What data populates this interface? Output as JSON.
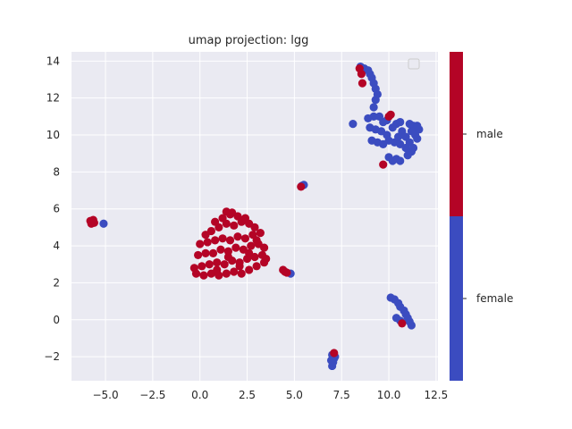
{
  "chart_data": {
    "type": "scatter",
    "title": "umap projection: lgg",
    "xlabel": "",
    "ylabel": "",
    "xlim": [
      -6.8,
      12.6
    ],
    "ylim": [
      -3.3,
      14.5
    ],
    "x_ticks": [
      "−5.0",
      "−2.5",
      "0.0",
      "2.5",
      "5.0",
      "7.5",
      "10.0",
      "12.5"
    ],
    "x_tick_values": [
      -5,
      -2.5,
      0,
      2.5,
      5,
      7.5,
      10,
      12.5
    ],
    "y_ticks": [
      "−2",
      "0",
      "2",
      "4",
      "6",
      "8",
      "10",
      "12",
      "14"
    ],
    "y_tick_values": [
      -2,
      0,
      2,
      4,
      6,
      8,
      10,
      12,
      14
    ],
    "grid": true,
    "background": "#eaeaf2",
    "legend": "top-right (empty)",
    "colorbar": {
      "categories": [
        "female",
        "male"
      ],
      "colors": [
        "#3b4cc0",
        "#b40426"
      ]
    },
    "series": [
      {
        "name": "female",
        "color": "#3b4cc0",
        "points": [
          [
            -5.1,
            5.2
          ],
          [
            4.8,
            2.5
          ],
          [
            5.5,
            7.3
          ],
          [
            5.4,
            7.25
          ],
          [
            7.0,
            -2.5
          ],
          [
            7.05,
            -2.3
          ],
          [
            7.1,
            -2.1
          ],
          [
            7.0,
            -1.9
          ],
          [
            7.15,
            -2.0
          ],
          [
            6.95,
            -2.2
          ],
          [
            8.5,
            13.7
          ],
          [
            8.7,
            13.6
          ],
          [
            8.9,
            13.5
          ],
          [
            9.0,
            13.3
          ],
          [
            9.1,
            13.1
          ],
          [
            9.2,
            12.8
          ],
          [
            9.3,
            12.5
          ],
          [
            9.4,
            12.2
          ],
          [
            9.3,
            11.9
          ],
          [
            9.2,
            11.5
          ],
          [
            8.1,
            10.6
          ],
          [
            8.9,
            10.9
          ],
          [
            9.2,
            11.0
          ],
          [
            9.5,
            11.0
          ],
          [
            9.7,
            10.7
          ],
          [
            9.9,
            10.8
          ],
          [
            9.0,
            10.4
          ],
          [
            9.3,
            10.3
          ],
          [
            9.6,
            10.2
          ],
          [
            9.9,
            10.0
          ],
          [
            9.1,
            9.7
          ],
          [
            9.4,
            9.6
          ],
          [
            9.7,
            9.5
          ],
          [
            10.0,
            9.7
          ],
          [
            10.3,
            9.6
          ],
          [
            10.5,
            9.9
          ],
          [
            10.7,
            10.2
          ],
          [
            10.9,
            9.9
          ],
          [
            10.6,
            9.5
          ],
          [
            10.9,
            9.3
          ],
          [
            11.2,
            9.1
          ],
          [
            11.0,
            8.9
          ],
          [
            10.0,
            8.8
          ],
          [
            10.2,
            8.6
          ],
          [
            10.4,
            8.7
          ],
          [
            10.6,
            8.6
          ],
          [
            10.4,
            10.6
          ],
          [
            10.6,
            10.7
          ],
          [
            10.2,
            10.4
          ],
          [
            11.1,
            10.6
          ],
          [
            11.3,
            10.5
          ],
          [
            11.5,
            10.5
          ],
          [
            11.6,
            10.3
          ],
          [
            11.2,
            10.2
          ],
          [
            11.4,
            10.0
          ],
          [
            11.5,
            9.8
          ],
          [
            11.1,
            9.6
          ],
          [
            11.3,
            9.3
          ],
          [
            10.1,
            1.2
          ],
          [
            10.3,
            1.1
          ],
          [
            10.5,
            0.9
          ],
          [
            10.6,
            0.7
          ],
          [
            10.8,
            0.5
          ],
          [
            10.9,
            0.3
          ],
          [
            11.0,
            0.1
          ],
          [
            11.1,
            -0.1
          ],
          [
            11.2,
            -0.3
          ],
          [
            10.4,
            0.1
          ],
          [
            10.6,
            -0.05
          ]
        ]
      },
      {
        "name": "male",
        "color": "#b40426",
        "points": [
          [
            -5.8,
            5.35
          ],
          [
            -5.7,
            5.3
          ],
          [
            -5.6,
            5.25
          ],
          [
            -5.75,
            5.2
          ],
          [
            -5.65,
            5.4
          ],
          [
            8.6,
            12.8
          ],
          [
            8.55,
            13.3
          ],
          [
            8.45,
            13.6
          ],
          [
            9.7,
            8.4
          ],
          [
            10.1,
            11.1
          ],
          [
            10.0,
            11.0
          ],
          [
            10.7,
            -0.2
          ],
          [
            5.35,
            7.2
          ],
          [
            7.1,
            -1.8
          ],
          [
            4.4,
            2.7
          ],
          [
            4.5,
            2.6
          ],
          [
            4.6,
            2.55
          ],
          [
            -0.2,
            2.5
          ],
          [
            0.2,
            2.4
          ],
          [
            0.6,
            2.5
          ],
          [
            1.0,
            2.4
          ],
          [
            1.4,
            2.5
          ],
          [
            1.8,
            2.6
          ],
          [
            2.2,
            2.5
          ],
          [
            2.6,
            2.7
          ],
          [
            3.0,
            2.9
          ],
          [
            3.4,
            3.1
          ],
          [
            -0.3,
            2.8
          ],
          [
            0.1,
            2.9
          ],
          [
            0.5,
            3.0
          ],
          [
            0.9,
            3.1
          ],
          [
            1.3,
            3.0
          ],
          [
            1.7,
            3.2
          ],
          [
            2.1,
            3.1
          ],
          [
            2.5,
            3.3
          ],
          [
            2.9,
            3.4
          ],
          [
            3.3,
            3.5
          ],
          [
            -0.1,
            3.5
          ],
          [
            0.3,
            3.6
          ],
          [
            0.7,
            3.6
          ],
          [
            1.1,
            3.8
          ],
          [
            1.5,
            3.7
          ],
          [
            1.9,
            3.9
          ],
          [
            2.3,
            3.8
          ],
          [
            2.7,
            4.0
          ],
          [
            3.1,
            4.1
          ],
          [
            3.4,
            3.9
          ],
          [
            0.0,
            4.1
          ],
          [
            0.4,
            4.2
          ],
          [
            0.8,
            4.3
          ],
          [
            1.2,
            4.4
          ],
          [
            1.6,
            4.3
          ],
          [
            2.0,
            4.5
          ],
          [
            2.4,
            4.4
          ],
          [
            2.8,
            4.6
          ],
          [
            3.2,
            4.7
          ],
          [
            3.0,
            4.3
          ],
          [
            0.6,
            4.8
          ],
          [
            1.0,
            5.0
          ],
          [
            1.4,
            5.2
          ],
          [
            1.8,
            5.1
          ],
          [
            2.2,
            5.3
          ],
          [
            2.6,
            5.2
          ],
          [
            2.9,
            5.0
          ],
          [
            1.2,
            5.5
          ],
          [
            1.6,
            5.7
          ],
          [
            2.0,
            5.6
          ],
          [
            1.4,
            5.85
          ],
          [
            1.7,
            5.8
          ],
          [
            2.4,
            5.5
          ],
          [
            0.8,
            5.3
          ],
          [
            0.3,
            4.6
          ],
          [
            2.1,
            2.9
          ],
          [
            1.5,
            3.4
          ],
          [
            2.6,
            3.6
          ],
          [
            0.9,
            2.7
          ],
          [
            3.5,
            3.3
          ]
        ]
      }
    ]
  }
}
